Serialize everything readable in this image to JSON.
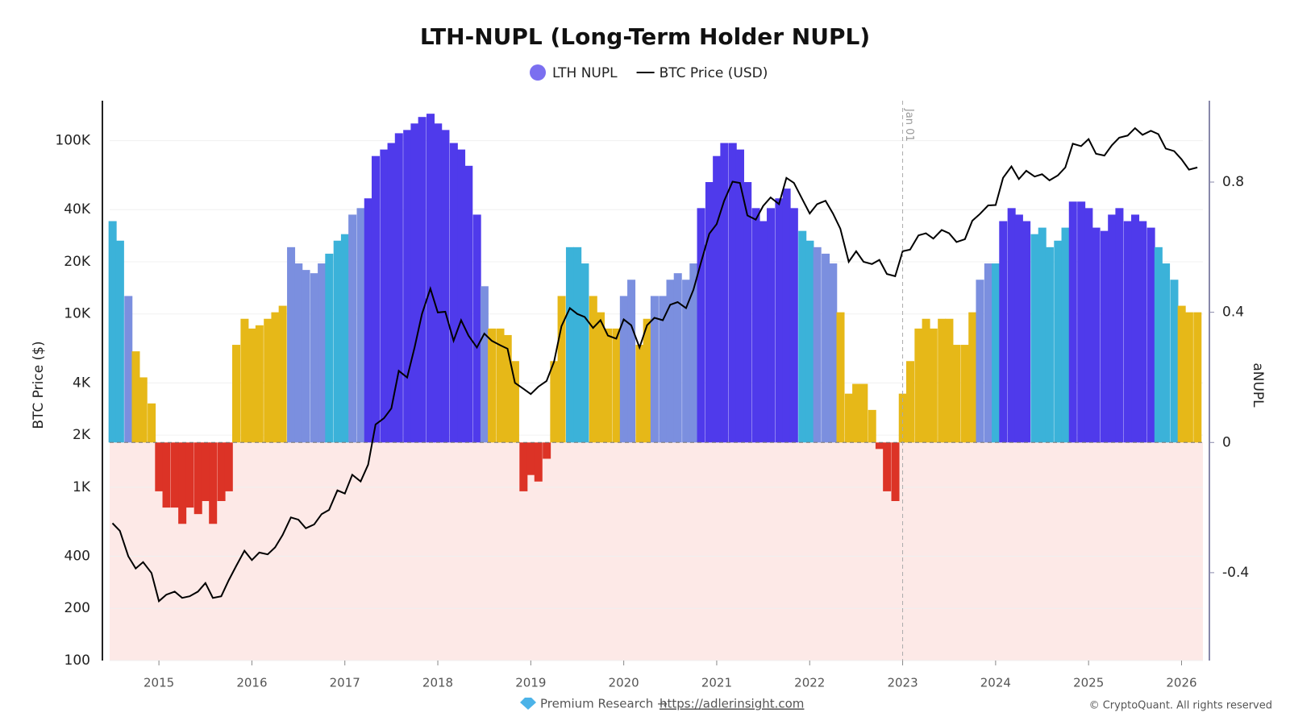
{
  "chart_data": {
    "type": "combo",
    "title": "LTH-NUPL (Long-Term Holder NUPL)",
    "ylabel": "BTC Price ($)",
    "y2label": "aNUPL",
    "log_y": true,
    "grid": true,
    "legend": "top",
    "xlim": [
      2014.47,
      2026.23
    ],
    "xticks": [
      2015,
      2016,
      2017,
      2018,
      2019,
      2020,
      2021,
      2022,
      2023,
      2024,
      2025,
      2026
    ],
    "ylim": [
      100,
      170000
    ],
    "yticks": [
      100,
      200,
      400,
      {
        "value": 1000,
        "label": "1K"
      },
      {
        "value": 2000,
        "label": "2K"
      },
      {
        "value": 4000,
        "label": "4K"
      },
      {
        "value": 10000,
        "label": "10K"
      },
      {
        "value": 20000,
        "label": "20K"
      },
      {
        "value": 40000,
        "label": "40K"
      },
      {
        "value": 100000,
        "label": "100K"
      }
    ],
    "y2lim": [
      -0.67,
      1.05
    ],
    "y2ticks": [
      -0.4,
      0,
      0.4,
      0.8
    ],
    "annotations": [
      {
        "x": 2023,
        "label": "Jan 01"
      }
    ],
    "x": [
      2014.5,
      2014.58,
      2014.67,
      2014.75,
      2014.83,
      2014.92,
      2015,
      2015.08,
      2015.17,
      2015.25,
      2015.33,
      2015.42,
      2015.5,
      2015.58,
      2015.67,
      2015.75,
      2015.83,
      2015.92,
      2016,
      2016.08,
      2016.17,
      2016.25,
      2016.33,
      2016.42,
      2016.5,
      2016.58,
      2016.67,
      2016.75,
      2016.83,
      2016.92,
      2017,
      2017.08,
      2017.17,
      2017.25,
      2017.33,
      2017.42,
      2017.5,
      2017.58,
      2017.67,
      2017.75,
      2017.83,
      2017.92,
      2018,
      2018.08,
      2018.17,
      2018.25,
      2018.33,
      2018.42,
      2018.5,
      2018.58,
      2018.67,
      2018.75,
      2018.83,
      2018.92,
      2019,
      2019.08,
      2019.17,
      2019.25,
      2019.33,
      2019.42,
      2019.5,
      2019.58,
      2019.67,
      2019.75,
      2019.83,
      2019.92,
      2020,
      2020.08,
      2020.17,
      2020.25,
      2020.33,
      2020.42,
      2020.5,
      2020.58,
      2020.67,
      2020.75,
      2020.83,
      2020.92,
      2021,
      2021.08,
      2021.17,
      2021.25,
      2021.33,
      2021.42,
      2021.5,
      2021.58,
      2021.67,
      2021.75,
      2021.83,
      2021.92,
      2022,
      2022.08,
      2022.17,
      2022.25,
      2022.33,
      2022.42,
      2022.5,
      2022.58,
      2022.67,
      2022.75,
      2022.83,
      2022.92,
      2023,
      2023.08,
      2023.17,
      2023.25,
      2023.33,
      2023.42,
      2023.5,
      2023.58,
      2023.67,
      2023.75,
      2023.83,
      2023.92,
      2024,
      2024.08,
      2024.17,
      2024.25,
      2024.33,
      2024.42,
      2024.5,
      2024.58,
      2024.67,
      2024.75,
      2024.83,
      2024.92,
      2025,
      2025.08,
      2025.17,
      2025.25,
      2025.33,
      2025.42,
      2025.5,
      2025.58,
      2025.67,
      2025.75,
      2025.83,
      2025.92,
      2026,
      2026.08,
      2026.17
    ],
    "series": [
      {
        "name": "LTH NUPL",
        "type": "bar",
        "axis": "y2",
        "color": "#7b6ff0",
        "values": [
          0.68,
          0.62,
          0.45,
          0.28,
          0.2,
          0.12,
          -0.15,
          -0.2,
          -0.2,
          -0.25,
          -0.2,
          -0.22,
          -0.18,
          -0.25,
          -0.18,
          -0.15,
          0.3,
          0.38,
          0.35,
          0.36,
          0.38,
          0.4,
          0.42,
          0.6,
          0.55,
          0.53,
          0.52,
          0.55,
          0.58,
          0.62,
          0.64,
          0.7,
          0.72,
          0.75,
          0.88,
          0.9,
          0.92,
          0.95,
          0.96,
          0.98,
          1.0,
          1.01,
          0.98,
          0.96,
          0.92,
          0.9,
          0.85,
          0.7,
          0.48,
          0.35,
          0.35,
          0.33,
          0.25,
          -0.15,
          -0.1,
          -0.12,
          -0.05,
          0.25,
          0.45,
          0.6,
          0.6,
          0.55,
          0.45,
          0.4,
          0.35,
          0.35,
          0.45,
          0.5,
          0.3,
          0.38,
          0.45,
          0.45,
          0.5,
          0.52,
          0.5,
          0.55,
          0.72,
          0.8,
          0.88,
          0.92,
          0.92,
          0.9,
          0.8,
          0.72,
          0.68,
          0.72,
          0.75,
          0.78,
          0.72,
          0.65,
          0.62,
          0.6,
          0.58,
          0.55,
          0.4,
          0.15,
          0.18,
          0.18,
          0.1,
          -0.02,
          -0.15,
          -0.18,
          0.15,
          0.25,
          0.35,
          0.38,
          0.35,
          0.38,
          0.38,
          0.3,
          0.3,
          0.4,
          0.5,
          0.55,
          0.55,
          0.68,
          0.72,
          0.7,
          0.68,
          0.64,
          0.66,
          0.6,
          0.62,
          0.66,
          0.74,
          0.74,
          0.72,
          0.66,
          0.65,
          0.7,
          0.72,
          0.68,
          0.7,
          0.68,
          0.66,
          0.6,
          0.55,
          0.5,
          0.42,
          0.4,
          0.4
        ],
        "colors": [
          "#3bb2d9",
          "#3bb2d9",
          "#7b8fdf",
          "#e6b818",
          "#e6b818",
          "#e6b818",
          "#dc3326",
          "#dc3326",
          "#dc3326",
          "#dc3326",
          "#dc3326",
          "#dc3326",
          "#dc3326",
          "#dc3326",
          "#dc3326",
          "#dc3326",
          "#e6b818",
          "#e6b818",
          "#e6b818",
          "#e6b818",
          "#e6b818",
          "#e6b818",
          "#e6b818",
          "#7b8fdf",
          "#7b8fdf",
          "#7b8fdf",
          "#7b8fdf",
          "#7b8fdf",
          "#3bb2d9",
          "#3bb2d9",
          "#3bb2d9",
          "#7b8fdf",
          "#7b8fdf",
          "#4f3aeb",
          "#4f3aeb",
          "#4f3aeb",
          "#4f3aeb",
          "#4f3aeb",
          "#4f3aeb",
          "#4f3aeb",
          "#4f3aeb",
          "#4f3aeb",
          "#4f3aeb",
          "#4f3aeb",
          "#4f3aeb",
          "#4f3aeb",
          "#4f3aeb",
          "#4f3aeb",
          "#7b8fdf",
          "#e6b818",
          "#e6b818",
          "#e6b818",
          "#e6b818",
          "#dc3326",
          "#dc3326",
          "#dc3326",
          "#dc3326",
          "#e6b818",
          "#e6b818",
          "#3bb2d9",
          "#3bb2d9",
          "#3bb2d9",
          "#e6b818",
          "#e6b818",
          "#e6b818",
          "#e6b818",
          "#7b8fdf",
          "#7b8fdf",
          "#e6b818",
          "#e6b818",
          "#7b8fdf",
          "#7b8fdf",
          "#7b8fdf",
          "#7b8fdf",
          "#7b8fdf",
          "#7b8fdf",
          "#4f3aeb",
          "#4f3aeb",
          "#4f3aeb",
          "#4f3aeb",
          "#4f3aeb",
          "#4f3aeb",
          "#4f3aeb",
          "#4f3aeb",
          "#4f3aeb",
          "#4f3aeb",
          "#4f3aeb",
          "#4f3aeb",
          "#4f3aeb",
          "#3bb2d9",
          "#3bb2d9",
          "#7b8fdf",
          "#7b8fdf",
          "#7b8fdf",
          "#e6b818",
          "#e6b818",
          "#e6b818",
          "#e6b818",
          "#e6b818",
          "#dc3326",
          "#dc3326",
          "#dc3326",
          "#e6b818",
          "#e6b818",
          "#e6b818",
          "#e6b818",
          "#e6b818",
          "#e6b818",
          "#e6b818",
          "#e6b818",
          "#e6b818",
          "#e6b818",
          "#7b8fdf",
          "#7b8fdf",
          "#3bb2d9",
          "#4f3aeb",
          "#4f3aeb",
          "#4f3aeb",
          "#4f3aeb",
          "#3bb2d9",
          "#3bb2d9",
          "#3bb2d9",
          "#3bb2d9",
          "#3bb2d9",
          "#4f3aeb",
          "#4f3aeb",
          "#4f3aeb",
          "#4f3aeb",
          "#4f3aeb",
          "#4f3aeb",
          "#4f3aeb",
          "#4f3aeb",
          "#4f3aeb",
          "#4f3aeb",
          "#4f3aeb",
          "#3bb2d9",
          "#3bb2d9",
          "#3bb2d9",
          "#e6b818",
          "#e6b818",
          "#e6b818"
        ]
      },
      {
        "name": "BTC Price (USD)",
        "type": "line",
        "axis": "y",
        "color": "#000000",
        "values": [
          620,
          560,
          400,
          340,
          370,
          320,
          220,
          240,
          250,
          230,
          235,
          250,
          280,
          230,
          235,
          290,
          350,
          430,
          380,
          420,
          410,
          450,
          530,
          670,
          650,
          580,
          610,
          700,
          740,
          960,
          920,
          1180,
          1080,
          1350,
          2300,
          2500,
          2850,
          4700,
          4300,
          6400,
          10000,
          14000,
          10200,
          10300,
          7000,
          9200,
          7500,
          6400,
          7700,
          7000,
          6600,
          6300,
          4000,
          3700,
          3450,
          3800,
          4100,
          5300,
          8500,
          10800,
          10000,
          9600,
          8300,
          9200,
          7500,
          7200,
          9300,
          8600,
          6400,
          8600,
          9500,
          9200,
          11300,
          11700,
          10800,
          13800,
          19700,
          29000,
          33000,
          45000,
          58000,
          57000,
          37000,
          35000,
          42000,
          47000,
          43000,
          61000,
          57000,
          46000,
          38000,
          43000,
          45000,
          38000,
          31000,
          20000,
          23000,
          20000,
          19400,
          20500,
          17000,
          16500,
          23000,
          23500,
          28400,
          29200,
          27200,
          30500,
          29200,
          26000,
          27000,
          34500,
          37700,
          42300,
          42500,
          61000,
          71000,
          60000,
          67000,
          62000,
          64000,
          59000,
          63000,
          70000,
          96000,
          93000,
          102000,
          84000,
          82000,
          94000,
          104000,
          107000,
          118000,
          108000,
          114000,
          109000,
          90000,
          87000,
          78000,
          68000,
          70000
        ]
      }
    ],
    "footer": {
      "left": "Premium Research →",
      "link": "https://adlerinsight.com",
      "right": "© CryptoQuant. All rights reserved"
    }
  }
}
